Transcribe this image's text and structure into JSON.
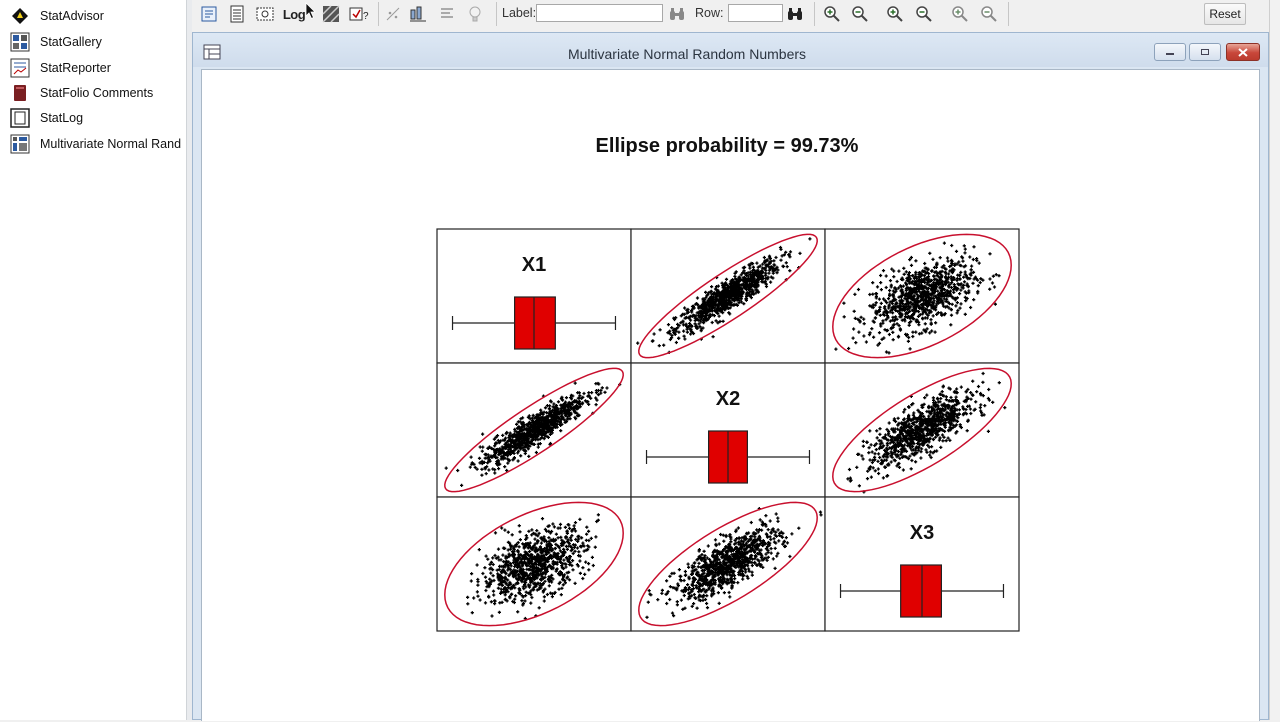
{
  "nav": {
    "items": [
      {
        "label": "StatAdvisor",
        "icon": "statadvisor-icon"
      },
      {
        "label": "StatGallery",
        "icon": "statgallery-icon"
      },
      {
        "label": "StatReporter",
        "icon": "statreporter-icon"
      },
      {
        "label": "StatFolio Comments",
        "icon": "statfolio-comments-icon"
      },
      {
        "label": "StatLog",
        "icon": "statlog-icon"
      },
      {
        "label": "Multivariate Normal Rand",
        "icon": "multivariate-window-icon"
      }
    ]
  },
  "toolbar": {
    "log_label": "Log",
    "label_text": "Label:",
    "label_value": "",
    "row_text": "Row:",
    "row_value": "",
    "reset_label": "Reset"
  },
  "window": {
    "title": "Multivariate Normal Random Numbers"
  },
  "chart_data": {
    "type": "scatter",
    "title": "Ellipse probability = 99.73%",
    "variables": [
      "X1",
      "X2",
      "X3"
    ],
    "diagonal": "boxplot",
    "ellipse_probability_percent": 99.73,
    "correlations": {
      "X1_X2": 0.9,
      "X1_X3": 0.5,
      "X2_X3": 0.75
    },
    "boxplots": [
      {
        "variable": "X1",
        "whisker_low": 0.08,
        "q1": 0.4,
        "median": 0.5,
        "q3": 0.61,
        "whisker_high": 0.92
      },
      {
        "variable": "X2",
        "whisker_low": 0.08,
        "q1": 0.4,
        "median": 0.5,
        "q3": 0.6,
        "whisker_high": 0.92
      },
      {
        "variable": "X3",
        "whisker_low": 0.08,
        "q1": 0.39,
        "median": 0.5,
        "q3": 0.6,
        "whisker_high": 0.92
      }
    ],
    "point_color": "#000000",
    "ellipse_color": "#c8102e",
    "box_color": "#e00000"
  }
}
